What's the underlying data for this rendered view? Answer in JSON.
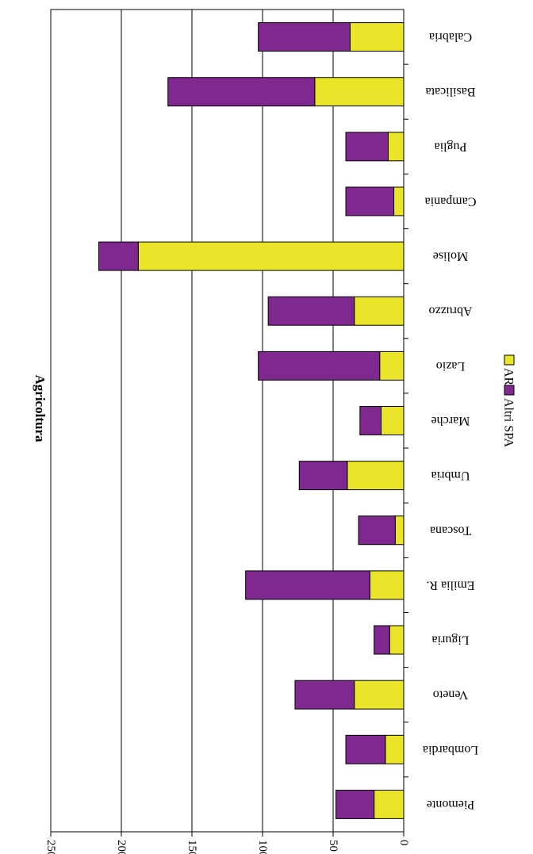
{
  "chart_data": {
    "type": "bar",
    "stacked": true,
    "orientation": "horizontal",
    "title": "Agricoltura",
    "categories": [
      "Piemonte",
      "Lombardia",
      "Veneto",
      "Liguria",
      "Emilia R.",
      "Toscana",
      "Umbria",
      "Marche",
      "Lazio",
      "Abruzzo",
      "Molise",
      "Campania",
      "Puglia",
      "Basilicata",
      "Calabria"
    ],
    "series": [
      {
        "name": "AR",
        "color": "#EBE52A",
        "values": [
          21,
          13,
          35,
          10,
          24,
          6,
          40,
          16,
          17,
          35,
          188,
          7,
          11,
          63,
          38
        ]
      },
      {
        "name": "Altri SPA",
        "color": "#7F288F",
        "values": [
          27,
          28,
          42,
          11,
          88,
          26,
          34,
          15,
          86,
          61,
          28,
          34,
          30,
          104,
          65
        ]
      }
    ],
    "value_axis": {
      "min": 0,
      "max": 250,
      "ticks": [
        0,
        50,
        100,
        150,
        200,
        250
      ]
    },
    "grid": true,
    "legend": {
      "position": "bottom"
    }
  }
}
